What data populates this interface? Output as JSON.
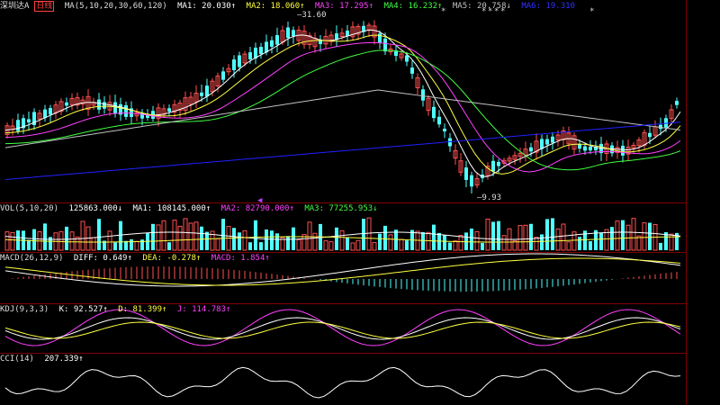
{
  "stock": {
    "name": "深圳达A",
    "tag": "日线"
  },
  "main_panel": {
    "ma_label": "MA(5,10,20,30,60,120)",
    "ma1": "MA1: 20.030↑",
    "ma2": "MA2: 18.060↑",
    "ma3": "MA3: 17.295↑",
    "ma4": "MA4: 16.232↑",
    "ma5": "MA5: 20.758↓",
    "ma6": "MA6: 19.310",
    "high_label": "31.60",
    "low_label": "9.93",
    "top_marks": [
      "*",
      "*",
      "*",
      "*",
      "*",
      "*",
      "*",
      "*"
    ]
  },
  "volume_panel": {
    "label": "VOL(5,10,20)",
    "vol": "125863.000↓",
    "ma1": "MA1: 108145.000↑",
    "ma2": "MA2: 82790.000↑",
    "ma3": "MA3: 77255.953↓"
  },
  "macd_panel": {
    "label": "MACD(26,12,9)",
    "diff": "DIFF: 0.649↑",
    "dea": "DEA: -0.278↑",
    "macd": "MACD: 1.854↑"
  },
  "kdj_panel": {
    "label": "KDJ(9,3,3)",
    "k": "K: 92.527↑",
    "d": "D: 81.399↑",
    "j": "J: 114.783↑"
  },
  "cci_panel": {
    "label": "CCI(14)",
    "value": "207.339↑"
  },
  "colors": {
    "up": "#ff5050",
    "down": "#50ffff",
    "ma1": "#ffffff",
    "ma2": "#ffff40",
    "ma3": "#ff40ff",
    "ma4": "#40ff40",
    "ma5": "#c0c0c0",
    "ma6": "#2020ff",
    "separator": "#800000"
  }
}
